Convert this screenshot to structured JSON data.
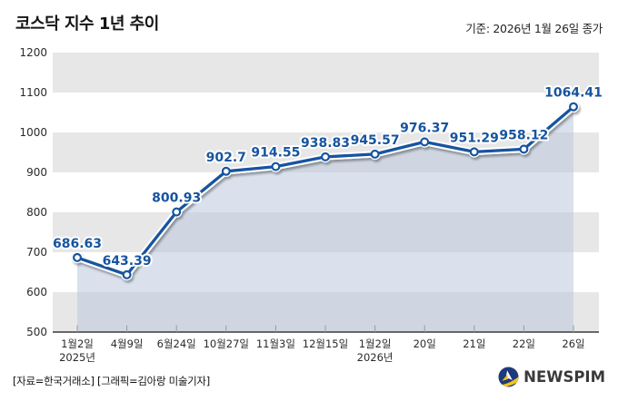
{
  "header": {
    "title": "코스닥 지수 1년 추이",
    "basis": "기준: 2026년 1월 26일 종가"
  },
  "chart_data": {
    "type": "line",
    "title": "코스닥 지수 1년 추이",
    "subtitle": "기준: 2026년 1월 26일 종가",
    "categories": [
      {
        "label": "1월2일",
        "sub": "2025년"
      },
      {
        "label": "4월9일"
      },
      {
        "label": "6월24일"
      },
      {
        "label": "10월27일"
      },
      {
        "label": "11월3일"
      },
      {
        "label": "12월15일"
      },
      {
        "label": "1월2일",
        "sub": "2026년"
      },
      {
        "label": "20일"
      },
      {
        "label": "21일"
      },
      {
        "label": "22일"
      },
      {
        "label": "26일"
      }
    ],
    "values": [
      686.63,
      643.39,
      800.93,
      902.7,
      914.55,
      938.83,
      945.57,
      976.37,
      951.29,
      958.12,
      1064.41
    ],
    "value_labels": [
      "686.63",
      "643.39",
      "800.93",
      "902.7",
      "914.55",
      "938.83",
      "945.57",
      "976.37",
      "951.29",
      "958.12",
      "1064.41"
    ],
    "ylim": [
      500,
      1200
    ],
    "yticks": [
      1200,
      1100,
      1000,
      900,
      800,
      700,
      600,
      500
    ],
    "grid": "alternating-horizontal-bands",
    "legend": "none",
    "colors": {
      "line": "#17549f",
      "point_fill": "#ffffff",
      "area": "rgba(188,201,223,0.55)",
      "band": "#e7e7e7",
      "axis": "#3c3c3c",
      "tick": "#9a9a9a",
      "value_text": "#17549f"
    }
  },
  "footer": {
    "source": "[자료=한국거래소] [그래픽=김아랑 미술기자]",
    "brand": "NEWSPIM"
  },
  "icons": {
    "brand_logo": "newspim-globe-icon"
  }
}
